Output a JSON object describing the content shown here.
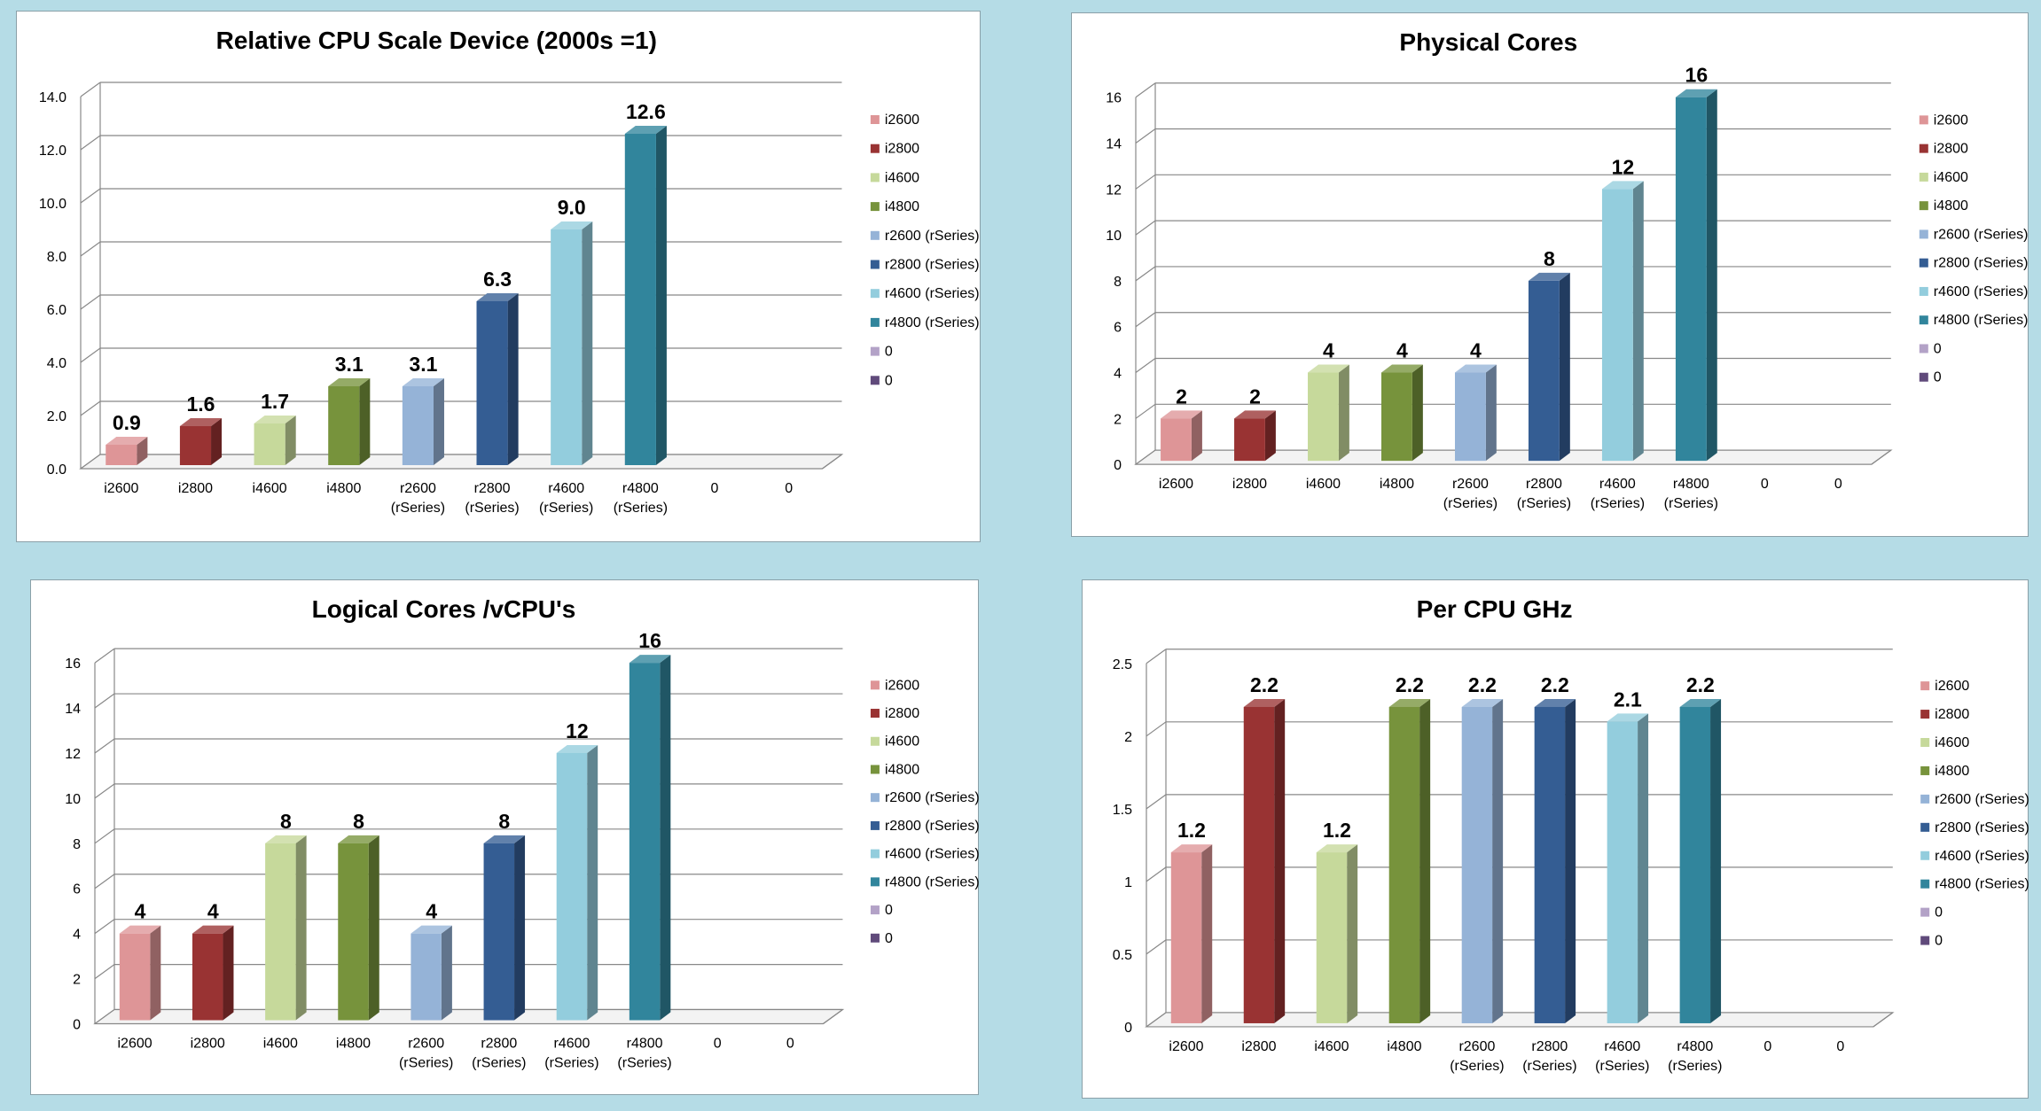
{
  "colors": {
    "i2600": "#de9597",
    "i2800": "#993333",
    "i4600": "#c6d99b",
    "i4800": "#77933c",
    "r2600": "#95b3d7",
    "r2800": "#345d93",
    "r4600": "#93cddd",
    "r4800": "#31859c",
    "zero1": "#b3a2c7",
    "zero2": "#604a7b"
  },
  "chart_data": [
    {
      "type": "bar",
      "title": "Relative CPU Scale Device (2000s =1)",
      "categories": [
        "i2600",
        "i2800",
        "i4600",
        "i4800",
        "r2600 (rSeries)",
        "r2800 (rSeries)",
        "r4600 (rSeries)",
        "r4800 (rSeries)",
        "0",
        "0"
      ],
      "values": [
        0.9,
        1.6,
        1.7,
        3.1,
        3.1,
        6.3,
        9.0,
        12.6,
        null,
        null
      ],
      "data_labels": [
        "0.9",
        "1.6",
        "1.7",
        "3.1",
        "3.1",
        "6.3",
        "9.0",
        "12.6",
        "",
        ""
      ],
      "yticks": [
        "0.0",
        "2.0",
        "4.0",
        "6.0",
        "8.0",
        "10.0",
        "12.0",
        "14.0"
      ],
      "ylim": [
        0,
        14
      ],
      "legend": [
        "i2600",
        "i2800",
        "i4600",
        "i4800",
        "r2600 (rSeries)",
        "r2800 (rSeries)",
        "r4600 (rSeries)",
        "r4800 (rSeries)",
        "0",
        "0"
      ],
      "legend_position": "right",
      "grid": true
    },
    {
      "type": "bar",
      "title": "Physical Cores",
      "categories": [
        "i2600",
        "i2800",
        "i4600",
        "i4800",
        "r2600 (rSeries)",
        "r2800 (rSeries)",
        "r4600 (rSeries)",
        "r4800 (rSeries)",
        "0",
        "0"
      ],
      "values": [
        2,
        2,
        4,
        4,
        4,
        8,
        12,
        16,
        null,
        null
      ],
      "data_labels": [
        "2",
        "2",
        "4",
        "4",
        "4",
        "8",
        "12",
        "16",
        "",
        ""
      ],
      "yticks": [
        "0",
        "2",
        "4",
        "6",
        "8",
        "10",
        "12",
        "14",
        "16"
      ],
      "ylim": [
        0,
        16
      ],
      "legend": [
        "i2600",
        "i2800",
        "i4600",
        "i4800",
        "r2600 (rSeries)",
        "r2800 (rSeries)",
        "r4600 (rSeries)",
        "r4800 (rSeries)",
        "0",
        "0"
      ],
      "legend_position": "right",
      "grid": true
    },
    {
      "type": "bar",
      "title": "Logical Cores /vCPU's",
      "categories": [
        "i2600",
        "i2800",
        "i4600",
        "i4800",
        "r2600 (rSeries)",
        "r2800 (rSeries)",
        "r4600 (rSeries)",
        "r4800 (rSeries)",
        "0",
        "0"
      ],
      "values": [
        4,
        4,
        8,
        8,
        4,
        8,
        12,
        16,
        null,
        null
      ],
      "data_labels": [
        "4",
        "4",
        "8",
        "8",
        "4",
        "8",
        "12",
        "16",
        "",
        ""
      ],
      "yticks": [
        "0",
        "2",
        "4",
        "6",
        "8",
        "10",
        "12",
        "14",
        "16"
      ],
      "ylim": [
        0,
        16
      ],
      "legend": [
        "i2600",
        "i2800",
        "i4600",
        "i4800",
        "r2600 (rSeries)",
        "r2800 (rSeries)",
        "r4600 (rSeries)",
        "r4800 (rSeries)",
        "0",
        "0"
      ],
      "legend_position": "right",
      "grid": true
    },
    {
      "type": "bar",
      "title": "Per CPU GHz",
      "categories": [
        "i2600",
        "i2800",
        "i4600",
        "i4800",
        "r2600 (rSeries)",
        "r2800 (rSeries)",
        "r4600 (rSeries)",
        "r4800 (rSeries)",
        "0",
        "0"
      ],
      "values": [
        1.2,
        2.2,
        1.2,
        2.2,
        2.2,
        2.2,
        2.1,
        2.2,
        null,
        null
      ],
      "data_labels": [
        "1.2",
        "2.2",
        "1.2",
        "2.2",
        "2.2",
        "2.2",
        "2.1",
        "2.2",
        "",
        ""
      ],
      "yticks": [
        "0",
        "0.5",
        "1",
        "1.5",
        "2",
        "2.5"
      ],
      "ylim": [
        0,
        2.5
      ],
      "legend": [
        "i2600",
        "i2800",
        "i4600",
        "i4800",
        "r2600 (rSeries)",
        "r2800 (rSeries)",
        "r4600 (rSeries)",
        "r4800 (rSeries)",
        "0",
        "0"
      ],
      "legend_position": "right",
      "grid": true
    }
  ]
}
